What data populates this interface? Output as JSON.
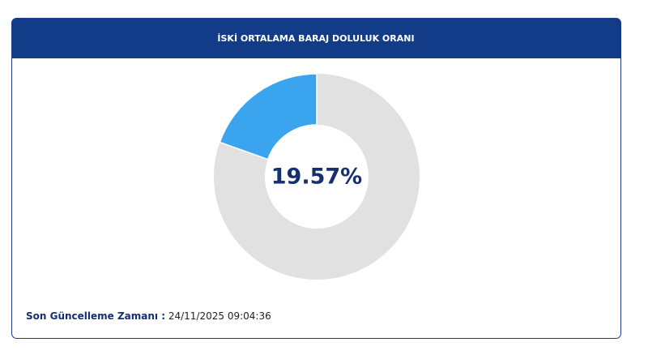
{
  "chart_data": {
    "type": "donut",
    "title": "İSKİ ORTALAMA BARAJ DOLULUK ORANI",
    "values": [
      19.57
    ],
    "value_labels": [
      "19.57%"
    ],
    "ylim": [
      0,
      100
    ],
    "color": "#3ba4ef",
    "track_color": "#e1e1e1"
  },
  "footer": {
    "label": "Son Güncelleme Zamanı :",
    "value": "24/11/2025 09:04:36"
  }
}
